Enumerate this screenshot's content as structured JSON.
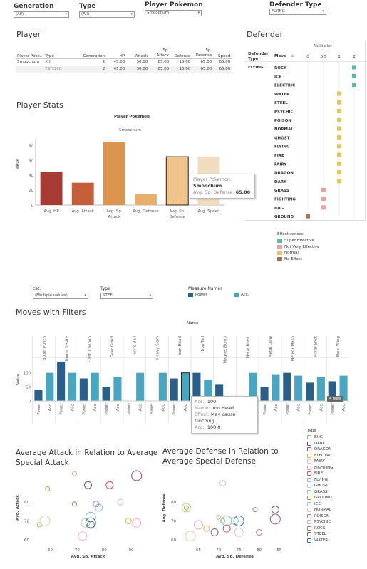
{
  "filters": {
    "generation": {
      "label": "Generation",
      "value": "(All)"
    },
    "type": {
      "label": "Type",
      "value": "(All)"
    },
    "player_pokemon": {
      "label": "Player Pokemon",
      "value": "Smoochum"
    },
    "defender_type": {
      "label": "Defender Type",
      "value": "FLYING"
    }
  },
  "player": {
    "title": "Player",
    "headers": [
      "Player Poke..",
      "Type",
      "Generation",
      "HP",
      "Attack",
      "Sp. Attack",
      "Defense",
      "Sp. Defense",
      "Speed"
    ],
    "rows": [
      {
        "name": "Smoochum",
        "type": "ICE",
        "generation": "2",
        "hp": "45.00",
        "attack": "30.00",
        "sp_attack": "85.00",
        "defense": "15.00",
        "sp_defense": "65.00",
        "speed": "65.00"
      },
      {
        "name": "",
        "type": "PSYCHIC",
        "generation": "2",
        "hp": "45.00",
        "attack": "30.00",
        "sp_attack": "85.00",
        "defense": "15.00",
        "sp_defense": "65.00",
        "speed": "65.00"
      }
    ]
  },
  "defender": {
    "title": "Defender",
    "multiplier_label": "Multiplier",
    "col_defender_type": "Defender Type",
    "col_move": "Move",
    "defender_type_value": "FLYING",
    "ticks": [
      "0",
      "0.5",
      "1",
      "2"
    ],
    "moves": [
      {
        "name": "ROCK",
        "mult": 2,
        "color": "#5fb7a6"
      },
      {
        "name": "ICE",
        "mult": 2,
        "color": "#5fb7a6"
      },
      {
        "name": "ELECTRIC",
        "mult": 2,
        "color": "#5fb7a6"
      },
      {
        "name": "WATER",
        "mult": 1,
        "color": "#e8c55a"
      },
      {
        "name": "STEEL",
        "mult": 1,
        "color": "#e8c55a"
      },
      {
        "name": "PSYCHIC",
        "mult": 1,
        "color": "#e8c55a"
      },
      {
        "name": "POISON",
        "mult": 1,
        "color": "#e8c55a"
      },
      {
        "name": "NORMAL",
        "mult": 1,
        "color": "#e8c55a"
      },
      {
        "name": "GHOST",
        "mult": 1,
        "color": "#e8c55a"
      },
      {
        "name": "FLYING",
        "mult": 1,
        "color": "#e8c55a"
      },
      {
        "name": "FIRE",
        "mult": 1,
        "color": "#e8c55a"
      },
      {
        "name": "FAIRY",
        "mult": 1,
        "color": "#e8c55a"
      },
      {
        "name": "DRAGON",
        "mult": 1,
        "color": "#e8c55a"
      },
      {
        "name": "DARK",
        "mult": 1,
        "color": "#e8c55a"
      },
      {
        "name": "GRASS",
        "mult": 0.5,
        "color": "#e9a3a8"
      },
      {
        "name": "FIGHTING",
        "mult": 0.5,
        "color": "#e9a3a8"
      },
      {
        "name": "BUG",
        "mult": 0.5,
        "color": "#e9a3a8"
      },
      {
        "name": "GROUND",
        "mult": 0,
        "color": "#a0745a"
      }
    ]
  },
  "effectiveness": {
    "title": "Effectiveness",
    "items": [
      {
        "label": "Super Effective",
        "color": "#5fb7a6"
      },
      {
        "label": "Not Very Effective",
        "color": "#e9a3a8"
      },
      {
        "label": "Normal",
        "color": "#e8c55a"
      },
      {
        "label": "No Effect",
        "color": "#a0745a"
      }
    ]
  },
  "player_stats": {
    "title": "Player Stats",
    "header": "Player Pokemon",
    "subheader": "Smoochum",
    "ylabel": "Value",
    "tooltip": {
      "k1": "Player Pokemon:",
      "v1": "Smoochum",
      "k2": "Avg. Sp. Defense:",
      "v2": "65.00"
    }
  },
  "moves_filters": {
    "cat": {
      "label": "cat.",
      "value": "(Multiple values)"
    },
    "type": {
      "label": "Type",
      "value": "STEEL"
    },
    "measure_names": {
      "label": "Measure Names",
      "power": "Power",
      "acc": "Acc.",
      "power_color": "#2b5f8a",
      "acc_color": "#4aa5c0"
    }
  },
  "moves_chart": {
    "title": "Moves with Filters",
    "header": "Name",
    "ylabel": "Value",
    "badge": "4 nulls",
    "tooltip": {
      "k1": "Acc.:",
      "v1": "100",
      "k2": "Name:",
      "v2": "Iron Head",
      "k3": "Effect:",
      "v3": "May cause flinching.",
      "k4": "Acc.:",
      "v4": "100.0"
    }
  },
  "scatter_attack": {
    "title": "Average Attack in Relation to Average Special Attack",
    "xlabel": "Avg. Sp. Attack",
    "ylabel": "Avg. Attack"
  },
  "scatter_defense": {
    "title": "Average Defense in Relation to Average Special Defense",
    "xlabel": "Avg. Sp. Defense",
    "ylabel": "Avg. Defense"
  },
  "type_legend": {
    "title": "Type",
    "items": [
      {
        "label": "BUG",
        "color": "#8cc46a"
      },
      {
        "label": "DARK",
        "color": "#6e5a64"
      },
      {
        "label": "DRAGON",
        "color": "#b04a6e"
      },
      {
        "label": "ELECTRIC",
        "color": "#e8b040"
      },
      {
        "label": "FAIRY",
        "color": "#f0b7c8"
      },
      {
        "label": "FIGHTING",
        "color": "#e7a3a5"
      },
      {
        "label": "FIRE",
        "color": "#d9534f"
      },
      {
        "label": "FLYING",
        "color": "#7fb8cf"
      },
      {
        "label": "GHOST",
        "color": "#d3bfd9"
      },
      {
        "label": "GRASS",
        "color": "#9fd48a"
      },
      {
        "label": "GROUND",
        "color": "#b6a14a"
      },
      {
        "label": "ICE",
        "color": "#8fc6e0"
      },
      {
        "label": "NORMAL",
        "color": "#d9cbb0"
      },
      {
        "label": "POISON",
        "color": "#c27aa6"
      },
      {
        "label": "PSYCHIC",
        "color": "#f0a6c0"
      },
      {
        "label": "ROCK",
        "color": "#a67c5b"
      },
      {
        "label": "STEEL",
        "color": "#7a6a6a"
      },
      {
        "label": "WATER",
        "color": "#3a6ea5"
      }
    ]
  },
  "chart_data": [
    {
      "type": "bar",
      "title": "Player Stats",
      "ylabel": "Value",
      "categories": [
        "Avg. HP",
        "Avg. Attack",
        "Avg. Sp. Attack",
        "Avg. Defense",
        "Avg. Sp. Defense",
        "Avg. Speed"
      ],
      "values": [
        45,
        30,
        85,
        15,
        65,
        65
      ],
      "colors": [
        "#a83a34",
        "#c45f3a",
        "#dc944f",
        "#e8ae6a",
        "#efc48a",
        "#f2dcbf"
      ],
      "yticks": [
        0,
        20,
        40,
        60,
        80
      ],
      "ylim": [
        0,
        90
      ],
      "highlight_index": 4
    },
    {
      "type": "bar",
      "title": "Moves with Filters",
      "ylabel": "Value",
      "categories": [
        "Bullet Punch",
        "Doom Desire",
        "Flash Cannon",
        "Gear Grind",
        "Gyro Ball",
        "Heavy Slam",
        "Iron Head",
        "Iron Tail",
        "Magnet Bomb",
        "Metal Burst",
        "Metal Claw",
        "Meteor Mash",
        "Mirror Shot",
        "Steel Wing"
      ],
      "series": [
        {
          "name": "Power",
          "values": [
            40,
            140,
            80,
            50,
            null,
            null,
            80,
            100,
            60,
            null,
            50,
            100,
            65,
            70
          ]
        },
        {
          "name": "Acc.",
          "values": [
            100,
            100,
            100,
            85,
            100,
            100,
            100,
            75,
            null,
            100,
            95,
            90,
            85,
            90
          ]
        }
      ],
      "yticks": [
        0,
        50,
        100
      ],
      "ylim": [
        0,
        150
      ],
      "sublabels": [
        "Power",
        "Acc."
      ]
    },
    {
      "type": "scatter",
      "title": "Average Attack in Relation to Average Special Attack",
      "xlabel": "Avg. Sp. Attack",
      "ylabel": "Avg. Attack",
      "xticks": [
        60,
        70,
        80,
        90
      ],
      "yticks": [
        60,
        70,
        80
      ],
      "xlim": [
        53,
        95
      ],
      "ylim": [
        57,
        97
      ],
      "points": [
        {
          "type": "BUG",
          "x": 56,
          "y": 68
        },
        {
          "type": "DARK",
          "x": 74,
          "y": 89
        },
        {
          "type": "DRAGON",
          "x": 92,
          "y": 94
        },
        {
          "type": "ELECTRIC",
          "x": 89,
          "y": 70
        },
        {
          "type": "FAIRY",
          "x": 72,
          "y": 62
        },
        {
          "type": "FIGHTING",
          "x": 69,
          "y": 95
        },
        {
          "type": "FIRE",
          "x": 82,
          "y": 89
        },
        {
          "type": "FLYING",
          "x": 75,
          "y": 72
        },
        {
          "type": "GHOST",
          "x": 86,
          "y": 80
        },
        {
          "type": "GRASS",
          "x": 73,
          "y": 69
        },
        {
          "type": "GROUND",
          "x": 59,
          "y": 87
        },
        {
          "type": "ICE",
          "x": 78,
          "y": 77
        },
        {
          "type": "NORMAL",
          "x": 58,
          "y": 70
        },
        {
          "type": "POISON",
          "x": 77,
          "y": 79
        },
        {
          "type": "PSYCHIC",
          "x": 92,
          "y": 69
        },
        {
          "type": "ROCK",
          "x": 69,
          "y": 79
        },
        {
          "type": "STEEL",
          "x": 75,
          "y": 68
        },
        {
          "type": "WATER",
          "x": 75,
          "y": 69
        }
      ]
    },
    {
      "type": "scatter",
      "title": "Average Defense in Relation to Average Special Defense",
      "xlabel": "Avg. Sp. Defense",
      "ylabel": "Avg. Defense",
      "xticks": [
        65,
        70,
        75,
        80,
        85
      ],
      "yticks": [
        60,
        70,
        80
      ],
      "xlim": [
        60,
        88
      ],
      "ylim": [
        57,
        97
      ],
      "points": [
        {
          "type": "BUG",
          "x": 71,
          "y": 70
        },
        {
          "type": "DARK",
          "x": 84,
          "y": 76
        },
        {
          "type": "DRAGON",
          "x": 84,
          "y": 71
        },
        {
          "type": "ELECTRIC",
          "x": 67,
          "y": 66
        },
        {
          "type": "FAIRY",
          "x": 75,
          "y": 64
        },
        {
          "type": "FIGHTING",
          "x": 70,
          "y": 72
        },
        {
          "type": "FIRE",
          "x": 72,
          "y": 66
        },
        {
          "type": "FLYING",
          "x": 72,
          "y": 70
        },
        {
          "type": "GHOST",
          "x": 71,
          "y": 90
        },
        {
          "type": "GRASS",
          "x": 62,
          "y": 77
        },
        {
          "type": "GROUND",
          "x": 62,
          "y": 77
        },
        {
          "type": "ICE",
          "x": 74,
          "y": 70
        },
        {
          "type": "NORMAL",
          "x": 63,
          "y": 62
        },
        {
          "type": "POISON",
          "x": 80,
          "y": 64
        },
        {
          "type": "PSYCHIC",
          "x": 65,
          "y": 68
        },
        {
          "type": "ROCK",
          "x": 79,
          "y": 76
        },
        {
          "type": "STEEL",
          "x": 69,
          "y": 64
        },
        {
          "type": "WATER",
          "x": 75,
          "y": 70
        }
      ]
    }
  ]
}
